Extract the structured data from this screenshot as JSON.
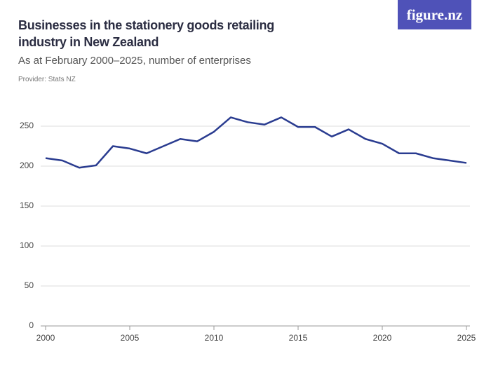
{
  "brand": "figure.nz",
  "chart_data": {
    "type": "line",
    "title": "Businesses in the stationery goods retailing industry in New Zealand",
    "subtitle": "As at February 2000–2025, number of enterprises",
    "provider": "Provider: Stats NZ",
    "x": [
      2000,
      2001,
      2002,
      2003,
      2004,
      2005,
      2006,
      2007,
      2008,
      2009,
      2010,
      2011,
      2012,
      2013,
      2014,
      2015,
      2016,
      2017,
      2018,
      2019,
      2020,
      2021,
      2022,
      2023,
      2024,
      2025
    ],
    "values": [
      210,
      207,
      198,
      201,
      225,
      222,
      216,
      225,
      234,
      231,
      243,
      261,
      255,
      252,
      261,
      249,
      249,
      237,
      246,
      234,
      228,
      216,
      216,
      210,
      207,
      204
    ],
    "color": "#2a3c90",
    "xlim": [
      2000,
      2025
    ],
    "xticks": [
      2000,
      2005,
      2010,
      2015,
      2020,
      2025
    ],
    "ylim": [
      0,
      250
    ],
    "yticks": [
      0,
      50,
      100,
      150,
      200,
      250
    ],
    "grid": true
  }
}
